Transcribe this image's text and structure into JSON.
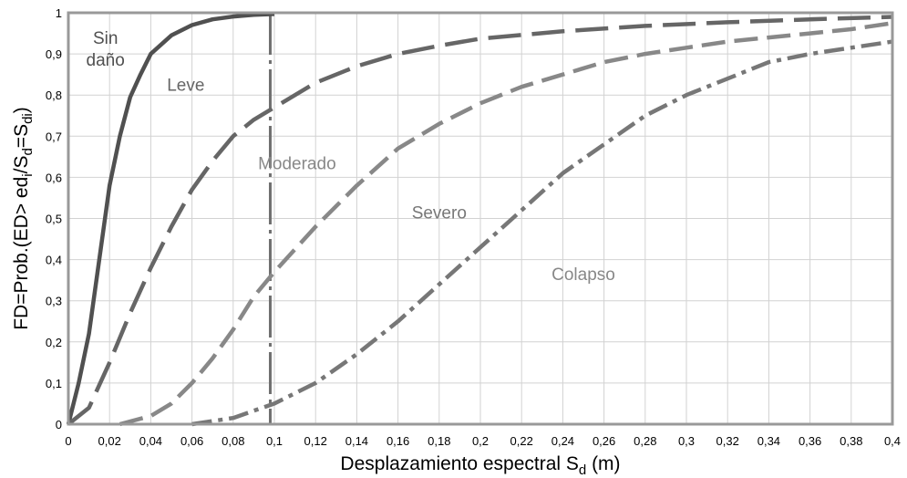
{
  "chart_data": {
    "type": "line",
    "title": "",
    "xlabel": "Desplazamiento espectral S",
    "xlabel_sub": "d",
    "xlabel_unit": " (m)",
    "ylabel_parts": [
      "FD=Prob.(ED> ed",
      "i",
      "/S",
      "d",
      "=S",
      "di",
      ")"
    ],
    "xlim": [
      0,
      0.4
    ],
    "ylim": [
      0,
      1
    ],
    "grid": true,
    "x_ticks": [
      0,
      0.02,
      0.04,
      0.06,
      0.08,
      0.1,
      0.12,
      0.14,
      0.16,
      0.18,
      0.2,
      0.22,
      0.24,
      0.26,
      0.28,
      0.3,
      0.32,
      0.34,
      0.36,
      0.38,
      0.4
    ],
    "x_tick_labels": [
      "0",
      "0,02",
      "0,04",
      "0,06",
      "0,08",
      "0,1",
      "0,12",
      "0,14",
      "0,16",
      "0,18",
      "0,2",
      "0,22",
      "0,24",
      "0,26",
      "0,28",
      "0,3",
      "0,32",
      "0,34",
      "0,36",
      "0,38",
      "0,4"
    ],
    "y_ticks": [
      0,
      0.1,
      0.2,
      0.3,
      0.4,
      0.5,
      0.6,
      0.7,
      0.8,
      0.9,
      1
    ],
    "y_tick_labels": [
      "0",
      "0,1",
      "0,2",
      "0,3",
      "0,4",
      "0,5",
      "0,6",
      "0,7",
      "0,8",
      "0,9",
      "1"
    ],
    "vertical_line": {
      "x": 0.098,
      "color": "#707070",
      "dash": "solid-dash"
    },
    "series": [
      {
        "name": "Sin daño",
        "label_lines": [
          "Sin",
          "daño"
        ],
        "label_at": {
          "x": 0.018,
          "y": 0.925
        },
        "color": "#505050",
        "style": "solid",
        "x": [
          0,
          0.005,
          0.01,
          0.015,
          0.02,
          0.025,
          0.03,
          0.035,
          0.04,
          0.05,
          0.06,
          0.07,
          0.08,
          0.09,
          0.1
        ],
        "y": [
          0,
          0.1,
          0.22,
          0.4,
          0.58,
          0.7,
          0.795,
          0.85,
          0.9,
          0.945,
          0.97,
          0.984,
          0.991,
          0.995,
          0.997
        ]
      },
      {
        "name": "Leve",
        "label_lines": [
          "Leve"
        ],
        "label_at": {
          "x": 0.057,
          "y": 0.81
        },
        "color": "#666666",
        "style": "long-dash",
        "x": [
          0,
          0.01,
          0.02,
          0.03,
          0.04,
          0.05,
          0.06,
          0.07,
          0.08,
          0.09,
          0.1,
          0.12,
          0.14,
          0.16,
          0.18,
          0.2,
          0.24,
          0.28,
          0.32,
          0.36,
          0.4
        ],
        "y": [
          0,
          0.04,
          0.15,
          0.27,
          0.38,
          0.48,
          0.57,
          0.64,
          0.7,
          0.74,
          0.77,
          0.83,
          0.87,
          0.9,
          0.92,
          0.937,
          0.955,
          0.968,
          0.977,
          0.984,
          0.99
        ]
      },
      {
        "name": "Moderado",
        "label_lines": [
          "Moderado"
        ],
        "label_at": {
          "x": 0.111,
          "y": 0.62
        },
        "color": "#888888",
        "style": "medium-dash",
        "x": [
          0.025,
          0.04,
          0.05,
          0.06,
          0.07,
          0.08,
          0.09,
          0.1,
          0.12,
          0.14,
          0.16,
          0.18,
          0.2,
          0.22,
          0.24,
          0.26,
          0.28,
          0.3,
          0.32,
          0.34,
          0.36,
          0.38,
          0.4
        ],
        "y": [
          0,
          0.02,
          0.05,
          0.1,
          0.16,
          0.23,
          0.31,
          0.37,
          0.48,
          0.58,
          0.67,
          0.73,
          0.78,
          0.82,
          0.85,
          0.88,
          0.9,
          0.915,
          0.93,
          0.94,
          0.95,
          0.96,
          0.975
        ]
      },
      {
        "name": "Severo",
        "label_lines": [
          "Severo"
        ],
        "label_at": {
          "x": 0.18,
          "y": 0.5
        },
        "color": "#777777",
        "style": "dash-dot",
        "x": [
          0.06,
          0.08,
          0.1,
          0.12,
          0.14,
          0.16,
          0.18,
          0.2,
          0.22,
          0.24,
          0.26,
          0.28,
          0.3,
          0.32,
          0.34,
          0.36,
          0.38,
          0.4
        ],
        "y": [
          0,
          0.015,
          0.05,
          0.1,
          0.17,
          0.25,
          0.34,
          0.43,
          0.52,
          0.61,
          0.68,
          0.75,
          0.8,
          0.84,
          0.88,
          0.9,
          0.915,
          0.93
        ]
      },
      {
        "name": "Colapso",
        "label_lines": [
          "Colapso"
        ],
        "label_at": {
          "x": 0.25,
          "y": 0.35
        },
        "color": "#888888",
        "style": "none"
      }
    ]
  }
}
